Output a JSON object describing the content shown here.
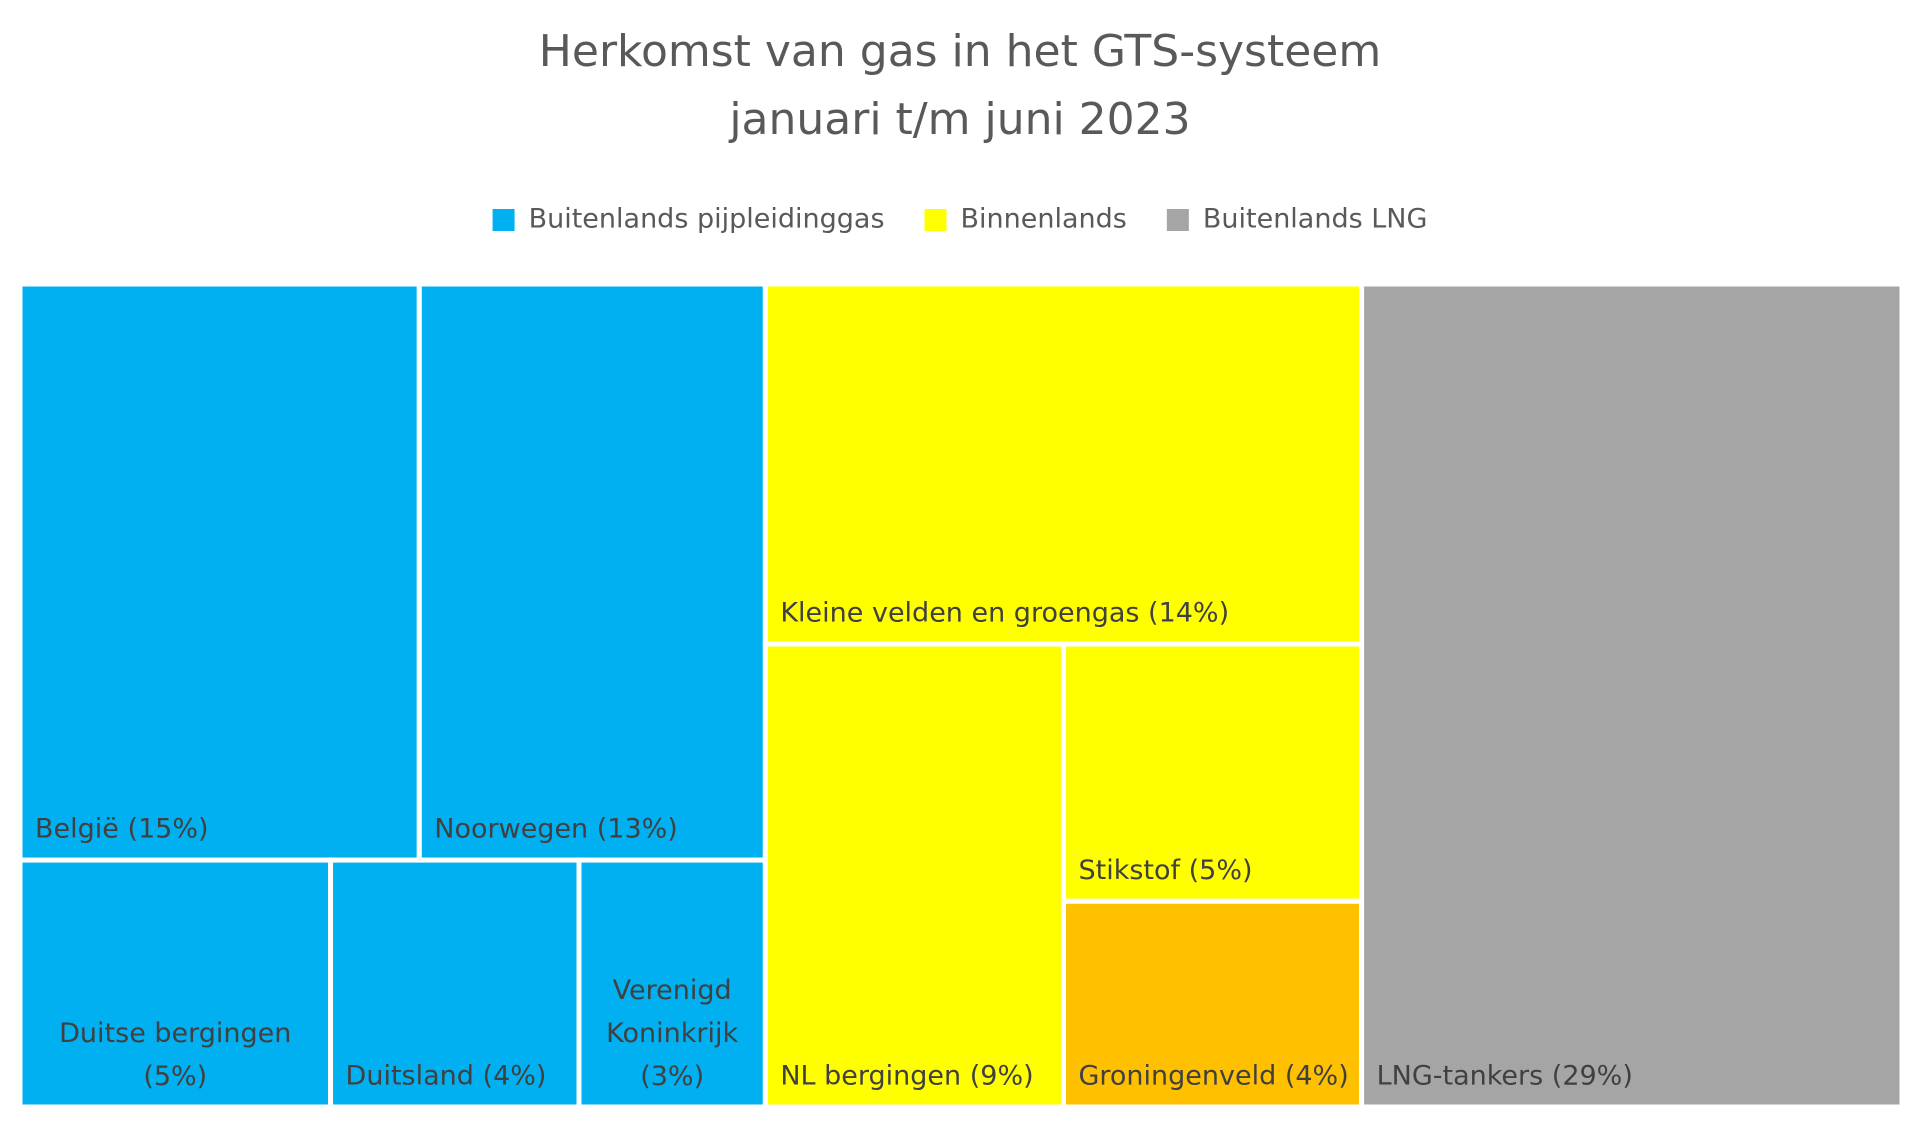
{
  "chart_data": {
    "type": "treemap",
    "title": [
      "Herkomst van gas in het GTS-systeem",
      "januari t/m juni 2023"
    ],
    "series": [
      {
        "name": "Buitenlands pijpleidinggas",
        "color": "#00B0F0",
        "categories": [
          "België",
          "Noorwegen",
          "Duitse bergingen",
          "Duitsland",
          "Verenigd Koninkrijk"
        ],
        "values": [
          15,
          13,
          5,
          4,
          3
        ],
        "value_labels": [
          "België (15%)",
          "Noorwegen (13%)",
          "Duitse bergingen (5%)",
          "Duitsland (4%)",
          "Verenigd Koninkrijk (3%)"
        ],
        "colors": [
          "#00B0F0",
          "#00B0F0",
          "#00B0F0",
          "#00B0F0",
          "#00B0F0"
        ]
      },
      {
        "name": "Binnenlands",
        "color": "#FFFF00",
        "categories": [
          "Kleine velden en groengas",
          "NL bergingen",
          "Stikstof",
          "Groningenveld"
        ],
        "values": [
          14,
          9,
          5,
          4
        ],
        "value_labels": [
          "Kleine velden en groengas (14%)",
          "NL bergingen (9%)",
          "Stikstof (5%)",
          "Groningenveld (4%)"
        ],
        "colors": [
          "#FFFF00",
          "#FFFF00",
          "#FFFF00",
          "#FFC000"
        ]
      },
      {
        "name": "Buitenlands LNG",
        "color": "#A5A5A5",
        "categories": [
          "LNG-tankers"
        ],
        "values": [
          29
        ],
        "value_labels": [
          "LNG-tankers (29%)"
        ],
        "colors": [
          "#A5A5A5"
        ]
      }
    ]
  }
}
